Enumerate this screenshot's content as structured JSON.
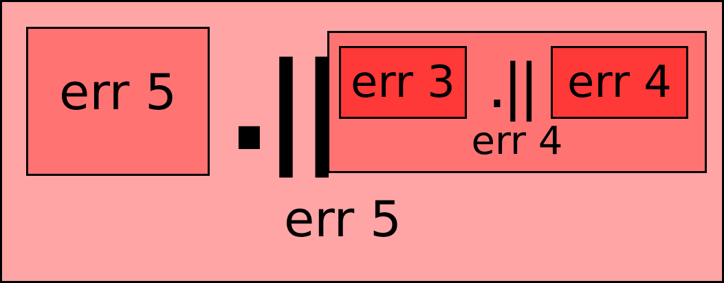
{
  "diagram": {
    "colors": {
      "background": "#ffa5a5",
      "box_medium": "#ff7373",
      "box_dark": "#ff3838",
      "border": "#000000"
    },
    "left_operand": {
      "label": "err 5"
    },
    "operator": ".||",
    "right_operand": {
      "inner_left": {
        "label": "err 3"
      },
      "inner_operator": ".||",
      "inner_right": {
        "label": "err 4"
      },
      "caption": "err 4"
    },
    "result_caption": "err 5"
  }
}
